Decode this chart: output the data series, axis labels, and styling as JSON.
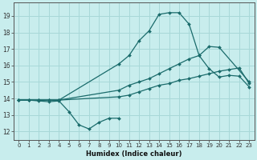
{
  "xlabel": "Humidex (Indice chaleur)",
  "ylim": [
    11.5,
    19.8
  ],
  "xlim": [
    -0.5,
    23.5
  ],
  "yticks": [
    12,
    13,
    14,
    15,
    16,
    17,
    18,
    19
  ],
  "xticks": [
    0,
    1,
    2,
    3,
    4,
    5,
    6,
    7,
    8,
    9,
    10,
    11,
    12,
    13,
    14,
    15,
    16,
    17,
    18,
    19,
    20,
    21,
    22,
    23
  ],
  "xtick_labels": [
    "0",
    "1",
    "2",
    "3",
    "4",
    "5",
    "6",
    "7",
    "8",
    "9",
    "10",
    "11",
    "12",
    "13",
    "14",
    "15",
    "16",
    "17",
    "18",
    "19",
    "20",
    "21",
    "22",
    "23"
  ],
  "background_color": "#c8eded",
  "grid_color": "#a8d8d8",
  "line_color": "#1a6b6b",
  "lines": [
    {
      "xy": [
        [
          0,
          13.9
        ],
        [
          1,
          13.9
        ],
        [
          2,
          13.85
        ],
        [
          3,
          13.8
        ],
        [
          4,
          13.85
        ],
        [
          5,
          13.2
        ],
        [
          6,
          12.4
        ],
        [
          7,
          12.15
        ],
        [
          8,
          12.55
        ],
        [
          9,
          12.8
        ],
        [
          10,
          12.8
        ]
      ]
    },
    {
      "xy": [
        [
          0,
          13.9
        ],
        [
          1,
          13.9
        ],
        [
          2,
          13.9
        ],
        [
          3,
          13.9
        ],
        [
          4,
          13.9
        ],
        [
          10,
          14.1
        ],
        [
          11,
          14.2
        ],
        [
          12,
          14.4
        ],
        [
          13,
          14.6
        ],
        [
          14,
          14.8
        ],
        [
          15,
          14.9
        ],
        [
          16,
          15.1
        ],
        [
          17,
          15.2
        ],
        [
          18,
          15.35
        ],
        [
          19,
          15.5
        ],
        [
          20,
          15.65
        ],
        [
          21,
          15.75
        ],
        [
          22,
          15.85
        ],
        [
          23,
          14.9
        ]
      ]
    },
    {
      "xy": [
        [
          0,
          13.9
        ],
        [
          1,
          13.9
        ],
        [
          2,
          13.9
        ],
        [
          3,
          13.9
        ],
        [
          4,
          13.9
        ],
        [
          10,
          14.5
        ],
        [
          11,
          14.8
        ],
        [
          12,
          15.0
        ],
        [
          13,
          15.2
        ],
        [
          14,
          15.5
        ],
        [
          15,
          15.8
        ],
        [
          16,
          16.1
        ],
        [
          17,
          16.4
        ],
        [
          18,
          16.6
        ],
        [
          19,
          15.8
        ],
        [
          20,
          15.3
        ],
        [
          21,
          15.4
        ],
        [
          22,
          15.35
        ],
        [
          23,
          14.7
        ]
      ]
    },
    {
      "xy": [
        [
          0,
          13.9
        ],
        [
          1,
          13.9
        ],
        [
          2,
          13.9
        ],
        [
          3,
          13.9
        ],
        [
          4,
          13.9
        ],
        [
          10,
          16.1
        ],
        [
          11,
          16.6
        ],
        [
          12,
          17.5
        ],
        [
          13,
          18.1
        ],
        [
          14,
          19.1
        ],
        [
          15,
          19.2
        ],
        [
          16,
          19.2
        ],
        [
          17,
          18.5
        ],
        [
          18,
          16.6
        ],
        [
          19,
          17.15
        ],
        [
          20,
          17.1
        ],
        [
          23,
          15.0
        ]
      ]
    }
  ]
}
